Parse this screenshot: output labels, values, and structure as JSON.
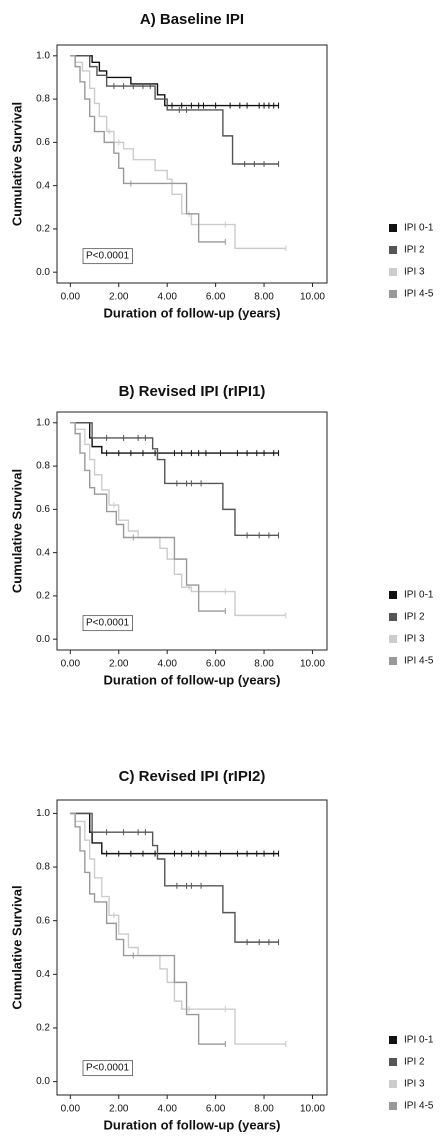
{
  "chart_data": [
    {
      "type": "line",
      "drawstyle": "steps-post",
      "title": "A) Baseline IPI",
      "xlabel": "Duration of follow-up (years)",
      "ylabel": "Cumulative Survival",
      "annotation": "P<0.0001",
      "xlim": [
        -0.55,
        10.6
      ],
      "ylim": [
        -0.05,
        1.05
      ],
      "xticks": [
        {
          "value": 0,
          "label": "0.00"
        },
        {
          "value": 2,
          "label": "2.00"
        },
        {
          "value": 4,
          "label": "4.00"
        },
        {
          "value": 6,
          "label": "6.00"
        },
        {
          "value": 8,
          "label": "8.00"
        },
        {
          "value": 10,
          "label": "10.00"
        }
      ],
      "yticks": [
        {
          "value": 0,
          "label": "0.0"
        },
        0.2,
        0.4,
        0.6,
        0.8,
        {
          "value": 1,
          "label": "1.0"
        }
      ],
      "series": [
        {
          "name": "IPI 0-1",
          "color": "#111111",
          "x": [
            0,
            0.9,
            1.2,
            1.5,
            2.5,
            3.6,
            3.9,
            8.6
          ],
          "values": [
            1,
            0.97,
            0.93,
            0.9,
            0.87,
            0.82,
            0.77,
            0.77
          ],
          "censored": [
            4.2,
            4.6,
            5.0,
            5.3,
            5.5,
            6.0,
            6.6,
            7.0,
            7.3,
            7.8,
            8.0,
            8.2,
            8.4,
            8.6
          ]
        },
        {
          "name": "IPI 2",
          "color": "#555555",
          "x": [
            0,
            0.8,
            1.1,
            1.5,
            3.5,
            4.0,
            6.3,
            6.7,
            8.6
          ],
          "values": [
            1,
            0.95,
            0.91,
            0.86,
            0.8,
            0.75,
            0.63,
            0.5,
            0.5
          ],
          "censored": [
            1.8,
            2.2,
            2.6,
            3.0,
            3.3,
            4.5,
            4.8,
            7.2,
            7.6,
            8.0,
            8.6
          ]
        },
        {
          "name": "IPI 3",
          "color": "#cccccc",
          "x": [
            0,
            0.2,
            0.5,
            0.8,
            1.0,
            1.2,
            1.5,
            1.8,
            2.2,
            2.6,
            3.5,
            4.0,
            4.2,
            4.6,
            5.0,
            6.8,
            8.9
          ],
          "values": [
            1,
            0.97,
            0.93,
            0.85,
            0.78,
            0.72,
            0.65,
            0.6,
            0.57,
            0.52,
            0.47,
            0.43,
            0.36,
            0.27,
            0.22,
            0.11,
            0.11
          ],
          "censored": [
            1.6,
            2.0,
            4.9,
            6.4,
            8.9
          ]
        },
        {
          "name": "IPI 4-5",
          "color": "#999999",
          "x": [
            0,
            0.2,
            0.4,
            0.6,
            0.8,
            1.0,
            1.4,
            1.8,
            2.0,
            2.2,
            4.8,
            5.3,
            6.4
          ],
          "values": [
            1,
            0.95,
            0.88,
            0.8,
            0.72,
            0.65,
            0.6,
            0.55,
            0.48,
            0.41,
            0.27,
            0.14,
            0.14
          ],
          "censored": [
            2.5,
            6.4
          ]
        }
      ]
    },
    {
      "type": "line",
      "drawstyle": "steps-post",
      "title": "B) Revised IPI (rIPI1)",
      "xlabel": "Duration of follow-up (years)",
      "ylabel": "Cumulative Survival",
      "annotation": "P<0.0001",
      "xlim": [
        -0.55,
        10.6
      ],
      "ylim": [
        -0.05,
        1.05
      ],
      "xticks": [
        {
          "value": 0,
          "label": "0.00"
        },
        {
          "value": 2,
          "label": "2.00"
        },
        {
          "value": 4,
          "label": "4.00"
        },
        {
          "value": 6,
          "label": "6.00"
        },
        {
          "value": 8,
          "label": "8.00"
        },
        {
          "value": 10,
          "label": "10.00"
        }
      ],
      "yticks": [
        {
          "value": 0,
          "label": "0.0"
        },
        0.2,
        0.4,
        0.6,
        0.8,
        {
          "value": 1,
          "label": "1.0"
        }
      ],
      "series": [
        {
          "name": "IPI 0-1",
          "color": "#111111",
          "x": [
            0,
            0.8,
            0.9,
            1.3,
            8.6
          ],
          "values": [
            1,
            0.93,
            0.89,
            0.86,
            0.86
          ],
          "censored": [
            1.5,
            2.0,
            2.5,
            3.0,
            3.5,
            4.3,
            4.6,
            5.0,
            5.3,
            5.6,
            6.2,
            6.9,
            7.3,
            7.7,
            8.0,
            8.4,
            8.6
          ]
        },
        {
          "name": "IPI 2",
          "color": "#555555",
          "x": [
            0,
            0.9,
            3.4,
            3.6,
            3.9,
            6.3,
            6.8,
            8.6
          ],
          "values": [
            1,
            0.93,
            0.88,
            0.83,
            0.72,
            0.6,
            0.48,
            0.48
          ],
          "censored": [
            1.5,
            2.2,
            2.8,
            3.1,
            4.4,
            4.8,
            5.0,
            5.4,
            7.3,
            7.8,
            8.2,
            8.6
          ]
        },
        {
          "name": "IPI 3",
          "color": "#cccccc",
          "x": [
            0,
            0.2,
            0.6,
            0.8,
            1.0,
            1.3,
            1.6,
            2.0,
            2.4,
            2.8,
            3.7,
            4.0,
            4.3,
            4.6,
            5.0,
            6.8,
            8.9
          ],
          "values": [
            1,
            0.97,
            0.9,
            0.83,
            0.76,
            0.69,
            0.62,
            0.55,
            0.5,
            0.47,
            0.42,
            0.37,
            0.3,
            0.24,
            0.22,
            0.11,
            0.11
          ],
          "censored": [
            1.8,
            4.9,
            6.4,
            8.9
          ]
        },
        {
          "name": "IPI 4-5",
          "color": "#999999",
          "x": [
            0,
            0.2,
            0.4,
            0.6,
            0.8,
            1.0,
            1.5,
            1.9,
            2.2,
            4.3,
            4.8,
            5.3,
            6.4
          ],
          "values": [
            1,
            0.95,
            0.86,
            0.78,
            0.7,
            0.67,
            0.59,
            0.53,
            0.47,
            0.37,
            0.25,
            0.13,
            0.13
          ],
          "censored": [
            2.6,
            6.4
          ]
        }
      ]
    },
    {
      "type": "line",
      "drawstyle": "steps-post",
      "title": "C) Revised IPI (rIPI2)",
      "xlabel": "Duration of follow-up (years)",
      "ylabel": "Cumulative Survival",
      "annotation": "P<0.0001",
      "xlim": [
        -0.55,
        10.6
      ],
      "ylim": [
        -0.05,
        1.05
      ],
      "xticks": [
        {
          "value": 0,
          "label": "0.00"
        },
        {
          "value": 2,
          "label": "2.00"
        },
        {
          "value": 4,
          "label": "4.00"
        },
        {
          "value": 6,
          "label": "6.00"
        },
        {
          "value": 8,
          "label": "8.00"
        },
        {
          "value": 10,
          "label": "10.00"
        }
      ],
      "yticks": [
        {
          "value": 0,
          "label": "0.0"
        },
        0.2,
        0.4,
        0.6,
        0.8,
        {
          "value": 1,
          "label": "1.0"
        }
      ],
      "series": [
        {
          "name": "IPI 0-1",
          "color": "#111111",
          "x": [
            0,
            0.8,
            0.9,
            1.3,
            8.6
          ],
          "values": [
            1,
            0.93,
            0.89,
            0.85,
            0.85
          ],
          "censored": [
            1.5,
            2.0,
            2.5,
            3.0,
            3.5,
            4.3,
            4.6,
            5.0,
            5.3,
            5.6,
            6.2,
            6.9,
            7.3,
            7.7,
            8.0,
            8.4,
            8.6
          ]
        },
        {
          "name": "IPI 2",
          "color": "#555555",
          "x": [
            0,
            0.9,
            3.4,
            3.6,
            3.9,
            6.3,
            6.8,
            8.6
          ],
          "values": [
            1,
            0.93,
            0.88,
            0.83,
            0.73,
            0.63,
            0.52,
            0.52
          ],
          "censored": [
            1.5,
            2.2,
            2.8,
            3.1,
            4.4,
            4.8,
            5.0,
            5.4,
            7.3,
            7.8,
            8.2,
            8.6
          ]
        },
        {
          "name": "IPI 3",
          "color": "#cccccc",
          "x": [
            0,
            0.2,
            0.6,
            0.8,
            1.0,
            1.3,
            1.6,
            2.0,
            2.4,
            2.8,
            3.7,
            4.0,
            4.3,
            4.6,
            5.0,
            6.8,
            8.9
          ],
          "values": [
            1,
            0.97,
            0.9,
            0.83,
            0.76,
            0.69,
            0.62,
            0.55,
            0.5,
            0.47,
            0.42,
            0.37,
            0.3,
            0.27,
            0.27,
            0.14,
            0.14
          ],
          "censored": [
            1.8,
            4.9,
            6.4,
            8.9
          ]
        },
        {
          "name": "IPI 4-5",
          "color": "#999999",
          "x": [
            0,
            0.2,
            0.4,
            0.6,
            0.8,
            1.0,
            1.5,
            1.9,
            2.2,
            4.3,
            4.8,
            5.3,
            6.4
          ],
          "values": [
            1,
            0.95,
            0.86,
            0.78,
            0.7,
            0.67,
            0.59,
            0.53,
            0.47,
            0.37,
            0.25,
            0.14,
            0.14
          ],
          "censored": [
            2.6,
            6.4
          ]
        }
      ]
    }
  ]
}
